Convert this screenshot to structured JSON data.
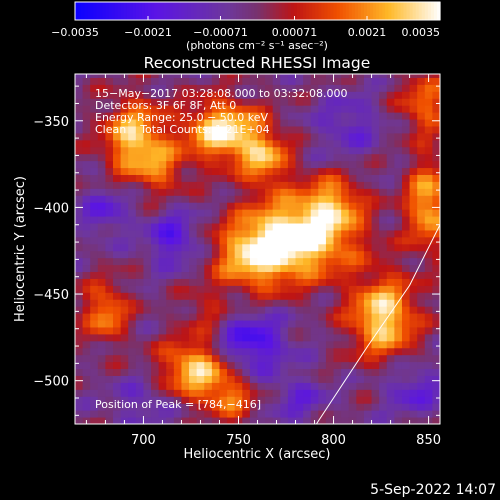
{
  "chart_data": {
    "type": "heatmap",
    "title": "Reconstructed RHESSI Image",
    "xlabel": "Heliocentric X (arcsec)",
    "ylabel": "Heliocentric Y (arcsec)",
    "xlim": [
      664,
      856
    ],
    "ylim": [
      -525,
      -323
    ],
    "x_ticks": [
      700,
      750,
      800,
      850
    ],
    "x_tick_labels": [
      "700",
      "750",
      "800",
      "850"
    ],
    "y_ticks": [
      -350,
      -400,
      -450,
      -500
    ],
    "y_tick_labels": [
      "−350",
      "−400",
      "−450",
      "−500"
    ],
    "colorbar": {
      "min": -0.0035,
      "max": 0.0035,
      "tick_values": [
        -0.0035,
        -0.0021,
        -0.00071,
        0.00071,
        0.0021,
        0.0035
      ],
      "tick_labels": [
        "−0.0035",
        "−0.0021",
        "−0.00071",
        "0.00071",
        "0.0021",
        "0.0035"
      ],
      "units_label": "(photons cm⁻² s⁻¹ asec⁻²)"
    },
    "annotations": [
      "15−May−2017 03:28:08.000 to 03:32:08.000",
      "Detectors: 3F 6F 8F, Att 0",
      "Energy Range: 25.0 − 50.0 keV",
      "Clean    Total Counts: 1.21E+04"
    ],
    "peak_label": "Position of Peak = [784,−416]",
    "limb_curve": [
      [
        791,
        -525
      ],
      [
        818,
        -480
      ],
      [
        840,
        -445
      ],
      [
        856,
        -410
      ]
    ],
    "blobs": [
      {
        "x": 695,
        "y": -360,
        "sx": 11,
        "sy": 15,
        "amp": 0.003
      },
      {
        "x": 710,
        "y": -378,
        "sx": 9,
        "sy": 10,
        "amp": 0.0015
      },
      {
        "x": 742,
        "y": -356,
        "sx": 14,
        "sy": 12,
        "amp": 0.0035
      },
      {
        "x": 764,
        "y": -372,
        "sx": 9,
        "sy": 11,
        "amp": 0.0023
      },
      {
        "x": 784,
        "y": -416,
        "sx": 20,
        "sy": 16,
        "amp": 0.0037
      },
      {
        "x": 758,
        "y": -428,
        "sx": 15,
        "sy": 14,
        "amp": 0.0026
      },
      {
        "x": 800,
        "y": -396,
        "sx": 10,
        "sy": 10,
        "amp": 0.0018
      },
      {
        "x": 733,
        "y": -460,
        "sx": 8,
        "sy": 9,
        "amp": 0.0011
      },
      {
        "x": 826,
        "y": -463,
        "sx": 12,
        "sy": 16,
        "amp": 0.0033
      },
      {
        "x": 850,
        "y": -398,
        "sx": 8,
        "sy": 18,
        "amp": 0.0027
      },
      {
        "x": 728,
        "y": -493,
        "sx": 13,
        "sy": 12,
        "amp": 0.0031
      },
      {
        "x": 746,
        "y": -510,
        "sx": 9,
        "sy": 8,
        "amp": 0.0018
      },
      {
        "x": 680,
        "y": -460,
        "sx": 8,
        "sy": 12,
        "amp": 0.0022
      },
      {
        "x": 680,
        "y": -402,
        "sx": 9,
        "sy": 10,
        "amp": -0.0014
      },
      {
        "x": 716,
        "y": -418,
        "sx": 10,
        "sy": 11,
        "amp": -0.0018
      },
      {
        "x": 756,
        "y": -478,
        "sx": 14,
        "sy": 12,
        "amp": -0.0022
      },
      {
        "x": 808,
        "y": -352,
        "sx": 12,
        "sy": 12,
        "amp": -0.0012
      },
      {
        "x": 848,
        "y": -340,
        "sx": 9,
        "sy": 12,
        "amp": 0.0019
      },
      {
        "x": 842,
        "y": -505,
        "sx": 11,
        "sy": 10,
        "amp": -0.0014
      },
      {
        "x": 700,
        "y": -512,
        "sx": 12,
        "sy": 10,
        "amp": -0.001
      },
      {
        "x": 782,
        "y": -510,
        "sx": 10,
        "sy": 9,
        "amp": -0.0012
      }
    ],
    "grid": false,
    "legend": "none"
  },
  "footer": {
    "date": "5-Sep-2022 14:07"
  }
}
